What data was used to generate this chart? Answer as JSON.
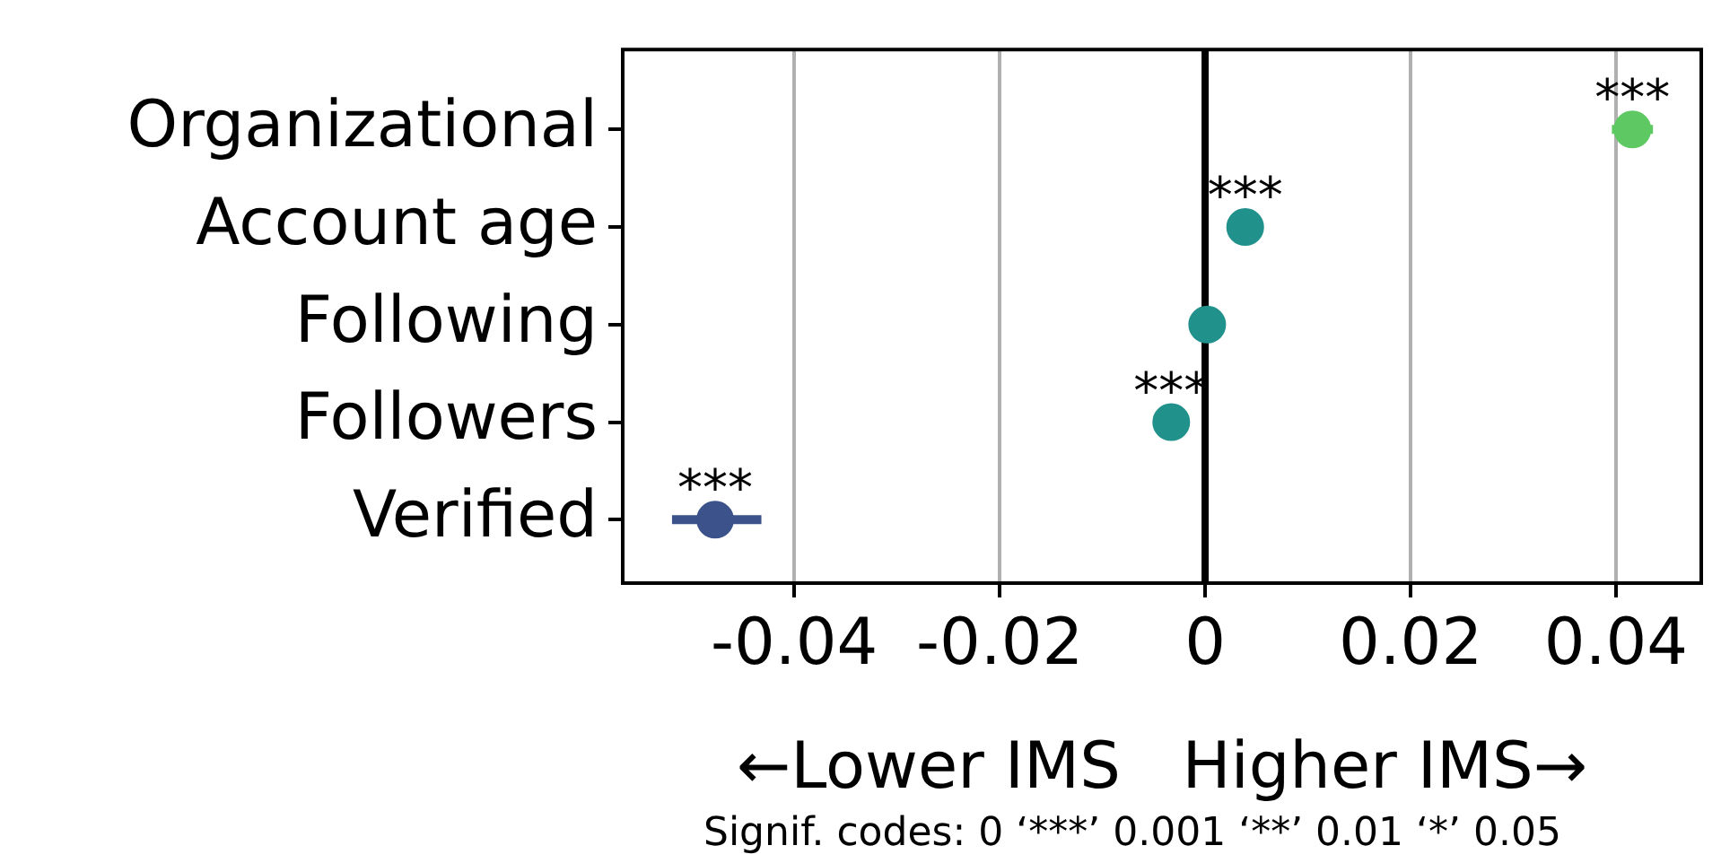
{
  "chart_data": {
    "type": "scatter",
    "orientation": "horizontal",
    "categories": [
      "Organizational",
      "Account age",
      "Following",
      "Followers",
      "Verified"
    ],
    "values": [
      0.0416,
      0.0039,
      0.0002,
      -0.0033,
      -0.0477
    ],
    "colors": [
      "#5ec962",
      "#21918c",
      "#21918c",
      "#21918c",
      "#3b528b"
    ],
    "errors": [
      0.002,
      null,
      null,
      null,
      [
        -0.0519,
        -0.0432
      ]
    ],
    "value_labels": [
      "***",
      "***",
      null,
      "***",
      "***"
    ],
    "xlim": [
      -0.0567,
      0.0483
    ],
    "xticks": [
      -0.04,
      -0.02,
      0,
      0.02,
      0.04
    ],
    "xlabel": "←Lower IMS   Higher IMS→",
    "ref_lines": [
      {
        "axis": "x",
        "value": 0,
        "color": "#000000"
      }
    ],
    "grid": "x",
    "marker": "circle",
    "annotations": [
      "Signif. codes:  0 ‘***’ 0.001 ‘**’ 0.01 ‘*’ 0.05"
    ]
  }
}
